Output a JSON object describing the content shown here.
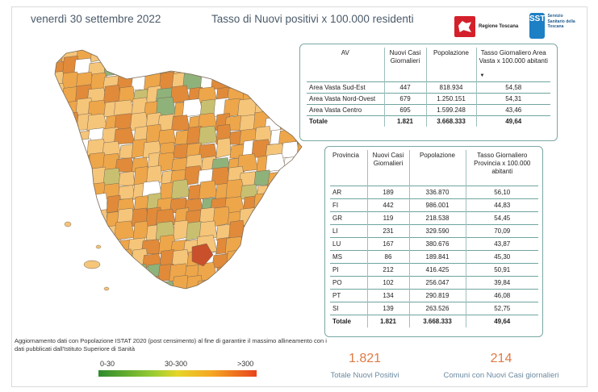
{
  "header": {
    "date": "venerdì 30 settembre 2022",
    "title": "Tasso di Nuovi positivi x 100.000 residenti",
    "logo_rt_text": "Regione Toscana",
    "logo_sst_mark": "SST",
    "logo_sst_text": "Servizio Sanitario della Toscana"
  },
  "chart_data": [
    {
      "type": "table",
      "columns": [
        "AV",
        "Nuovi Casi Giornalieri",
        "Popolazione",
        "Tasso Giornaliero Area Vasta x 100.000 abitanti"
      ],
      "sort_indicator": "▼",
      "rows": [
        [
          "Area Vasta Sud-Est",
          "447",
          "818.934",
          "54,58"
        ],
        [
          "Area Vasta Nord-Ovest",
          "679",
          "1.250.151",
          "54,31"
        ],
        [
          "Area Vasta Centro",
          "695",
          "1.599.248",
          "43,46"
        ]
      ],
      "total": [
        "Totale",
        "1.821",
        "3.668.333",
        "49,64"
      ]
    },
    {
      "type": "table",
      "columns": [
        "Provincia",
        "Nuovi Casi Giornalieri",
        "Popolazione",
        "Tasso Giornaliero Provincia x 100.000 abitanti"
      ],
      "rows": [
        [
          "AR",
          "189",
          "336.870",
          "56,10"
        ],
        [
          "FI",
          "442",
          "986.001",
          "44,83"
        ],
        [
          "GR",
          "119",
          "218.538",
          "54,45"
        ],
        [
          "LI",
          "231",
          "329.590",
          "70,09"
        ],
        [
          "LU",
          "167",
          "380.676",
          "43,87"
        ],
        [
          "MS",
          "86",
          "189.841",
          "45,30"
        ],
        [
          "PI",
          "212",
          "416.425",
          "50,91"
        ],
        [
          "PO",
          "102",
          "256.047",
          "39,84"
        ],
        [
          "PT",
          "134",
          "290.819",
          "46,08"
        ],
        [
          "SI",
          "139",
          "263.526",
          "52,75"
        ]
      ],
      "total": [
        "Totale",
        "1.821",
        "3.668.333",
        "49,64"
      ]
    }
  ],
  "note": "Aggiornamento dati con Popolazione ISTAT 2020 (post censimento) al fine di garantire il massimo allineamento con i dati pubblicati dall'Istituto Superiore di Sanità",
  "legend": {
    "labels": [
      "0-30",
      "30-300",
      ">300"
    ],
    "colors": {
      "low": "#2e8b2e",
      "mid": "#e6d52a",
      "high": "#e8431c"
    }
  },
  "kpis": [
    {
      "value": "1.821",
      "label": "Totale Nuovi Positivi"
    },
    {
      "value": "214",
      "label": "Comuni con Nuovi Casi giornalieri"
    }
  ],
  "map": {
    "colors": {
      "light": "#f5c57a",
      "medium": "#eea64a",
      "dark": "#e08a3a",
      "high": "#c8502a",
      "green": "#8fb27a",
      "olive": "#c8c070",
      "none": "#ffffff",
      "border": "#7a6a55"
    }
  }
}
